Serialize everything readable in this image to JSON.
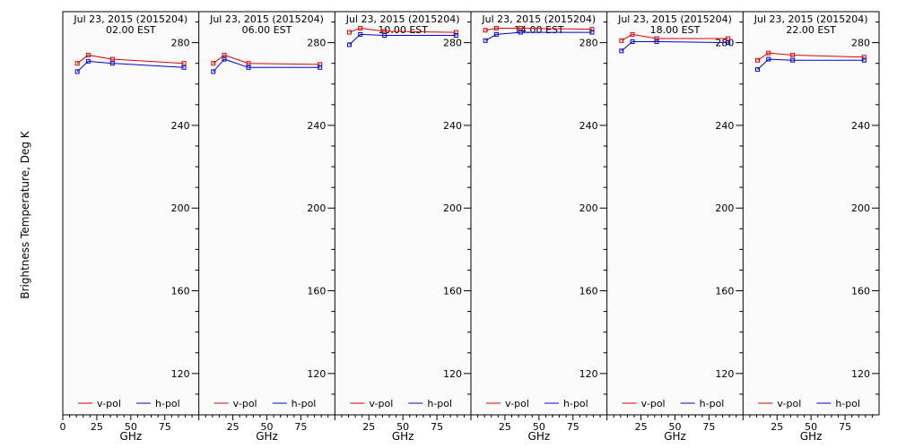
{
  "chart_data": {
    "type": "line",
    "ylabel": "Brightness Temperature, Deg K",
    "xlabel": "GHz",
    "xlim": [
      0,
      100
    ],
    "ylim": [
      100,
      295
    ],
    "yticks": [
      120,
      160,
      200,
      240,
      280
    ],
    "xticks": [
      0,
      25,
      50,
      75,
      100
    ],
    "xtick_labels": [
      "0",
      "25",
      "50",
      "75"
    ],
    "legend_placement": "bottom",
    "colors": {
      "v-pol": "#e00000",
      "h-pol": "#0000e0"
    },
    "x": [
      10.65,
      18.7,
      36.5,
      89
    ],
    "panels": [
      {
        "title": "Jul 23, 2015 (2015204)",
        "subtitle": "02.00 EST",
        "series": [
          {
            "name": "v-pol",
            "values": [
              270,
              274,
              272,
              270
            ]
          },
          {
            "name": "h-pol",
            "values": [
              266,
              271,
              270,
              268
            ]
          }
        ]
      },
      {
        "title": "Jul 23, 2015 (2015204)",
        "subtitle": "06.00 EST",
        "series": [
          {
            "name": "v-pol",
            "values": [
              270,
              274,
              270,
              269.5
            ]
          },
          {
            "name": "h-pol",
            "values": [
              266,
              272,
              268,
              268
            ]
          }
        ]
      },
      {
        "title": "Jul 23, 2015 (2015204)",
        "subtitle": "10.00 EST",
        "series": [
          {
            "name": "v-pol",
            "values": [
              285,
              287,
              285.5,
              285
            ]
          },
          {
            "name": "h-pol",
            "values": [
              279,
              284,
              283.5,
              283.5
            ]
          }
        ]
      },
      {
        "title": "Jul 23, 2015 (2015204)",
        "subtitle": "14.00 EST",
        "series": [
          {
            "name": "v-pol",
            "values": [
              286,
              287,
              287,
              286.5
            ]
          },
          {
            "name": "h-pol",
            "values": [
              281,
              284,
              285,
              285
            ]
          }
        ]
      },
      {
        "title": "Jul 23, 2015 (2015204)",
        "subtitle": "18.00 EST",
        "series": [
          {
            "name": "v-pol",
            "values": [
              281,
              284,
              282,
              282
            ]
          },
          {
            "name": "h-pol",
            "values": [
              276,
              280.5,
              280.5,
              280
            ]
          }
        ]
      },
      {
        "title": "Jul 23, 2015 (2015204)",
        "subtitle": "22.00 EST",
        "series": [
          {
            "name": "v-pol",
            "values": [
              271.5,
              275,
              274,
              273
            ]
          },
          {
            "name": "h-pol",
            "values": [
              267,
              272,
              271.5,
              271.5
            ]
          }
        ]
      }
    ]
  }
}
